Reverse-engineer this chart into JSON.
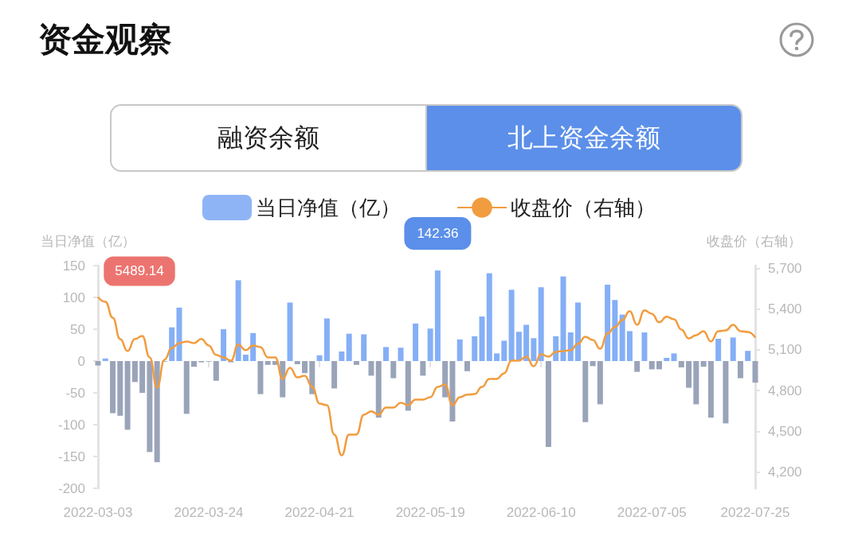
{
  "chart_data": {
    "type": "bar",
    "title": "资金观察",
    "annotations": [
      "融资余额",
      "北上资金余额"
    ],
    "ylabel": "当日净值（亿）",
    "y2label": "收盘价（右轴）",
    "legend": "top",
    "grid": false,
    "marker": "none",
    "categories": [
      "2022-03-03",
      null,
      null,
      null,
      null,
      null,
      null,
      null,
      null,
      null,
      null,
      null,
      null,
      null,
      null,
      "2022-03-24",
      null,
      null,
      null,
      null,
      null,
      null,
      null,
      null,
      null,
      null,
      null,
      null,
      null,
      null,
      "2022-04-21",
      null,
      null,
      null,
      null,
      null,
      null,
      null,
      null,
      null,
      null,
      null,
      null,
      null,
      null,
      "2022-05-19",
      null,
      null,
      null,
      null,
      null,
      null,
      null,
      null,
      null,
      null,
      null,
      null,
      null,
      null,
      "2022-06-10",
      null,
      null,
      null,
      null,
      null,
      null,
      null,
      null,
      null,
      null,
      null,
      null,
      null,
      null,
      "2022-07-05",
      null,
      null,
      null,
      null,
      null,
      null,
      null,
      null,
      null,
      null,
      null,
      null,
      null,
      "2022-07-25"
    ],
    "ylim": [
      -200,
      150
    ],
    "yticks": [
      -200,
      -150,
      -100,
      -50,
      0,
      50,
      100,
      150
    ],
    "y2lim": [
      4080,
      5720
    ],
    "y2ticks": [
      {
        "value": 4200,
        "label": "4,200"
      },
      {
        "value": 4500,
        "label": "4,500"
      },
      {
        "value": 4800,
        "label": "4,800"
      },
      {
        "value": 5100,
        "label": "5,100"
      },
      {
        "value": 5400,
        "label": "5,400"
      },
      {
        "value": 5700,
        "label": "5,700"
      }
    ],
    "series": [
      {
        "name": "当日净值（亿）",
        "type": "bar",
        "color": "#8fb4f5",
        "values": [
          -7,
          4,
          -82,
          -86,
          -108,
          -33,
          -50,
          -143,
          -159,
          -1,
          53,
          84,
          -83,
          -9,
          -2,
          -1,
          -31,
          50,
          -2,
          127,
          10,
          44,
          -52,
          -6,
          -6,
          -57,
          92,
          -5,
          -19,
          -52,
          9,
          67,
          -43,
          15,
          43,
          -6,
          42,
          -23,
          -89,
          22,
          -27,
          21,
          -78,
          59,
          -23,
          51,
          142.36,
          -57,
          -95,
          34,
          -16,
          39,
          70,
          138,
          12,
          32,
          112,
          46,
          57,
          36,
          116,
          -135,
          39,
          133,
          45,
          92,
          -96,
          -8,
          -68,
          120,
          96,
          73,
          47,
          -17,
          45,
          -13,
          -13,
          5,
          12,
          -10,
          -42,
          -68,
          -9,
          -89,
          35,
          -98,
          37,
          -27,
          16,
          -34
        ],
        "colors": [
          "#9aa4b9",
          "#85aff6",
          "#9aa4b9",
          "#9aa4b9",
          "#9aa4b9",
          "#9aa4b9",
          "#9aa4b9",
          "#9aa4b9",
          "#9aa4b9",
          "#9aa4b9",
          "#85aff6",
          "#85aff6",
          "#9aa4b9",
          "#9aa4b9",
          "#9aa4b9",
          "#9aa4b9",
          "#9aa4b9",
          "#85aff6",
          "#9aa4b9",
          "#85aff6",
          "#85aff6",
          "#85aff6",
          "#9aa4b9",
          "#9aa4b9",
          "#9aa4b9",
          "#9aa4b9",
          "#85aff6",
          "#9aa4b9",
          "#9aa4b9",
          "#9aa4b9",
          "#85aff6",
          "#85aff6",
          "#9aa4b9",
          "#85aff6",
          "#85aff6",
          "#9aa4b9",
          "#85aff6",
          "#9aa4b9",
          "#9aa4b9",
          "#85aff6",
          "#9aa4b9",
          "#85aff6",
          "#9aa4b9",
          "#85aff6",
          "#9aa4b9",
          "#85aff6",
          "#85aff6",
          "#9aa4b9",
          "#9aa4b9",
          "#85aff6",
          "#9aa4b9",
          "#85aff6",
          "#85aff6",
          "#85aff6",
          "#85aff6",
          "#85aff6",
          "#85aff6",
          "#85aff6",
          "#85aff6",
          "#85aff6",
          "#85aff6",
          "#9aa4b9",
          "#85aff6",
          "#85aff6",
          "#85aff6",
          "#85aff6",
          "#9aa4b9",
          "#9aa4b9",
          "#9aa4b9",
          "#85aff6",
          "#85aff6",
          "#85aff6",
          "#85aff6",
          "#9aa4b9",
          "#85aff6",
          "#9aa4b9",
          "#9aa4b9",
          "#85aff6",
          "#85aff6",
          "#9aa4b9",
          "#9aa4b9",
          "#9aa4b9",
          "#9aa4b9",
          "#9aa4b9",
          "#85aff6",
          "#9aa4b9",
          "#85aff6",
          "#9aa4b9",
          "#85aff6",
          "#9aa4b9"
        ],
        "value_labels": [
          null,
          null,
          null,
          null,
          null,
          null,
          null,
          null,
          null,
          null,
          null,
          null,
          null,
          null,
          null,
          null,
          null,
          null,
          null,
          null,
          null,
          null,
          null,
          null,
          null,
          null,
          null,
          null,
          null,
          null,
          null,
          null,
          null,
          null,
          null,
          null,
          null,
          null,
          null,
          null,
          null,
          null,
          null,
          null,
          null,
          null,
          "142.36",
          null,
          null,
          null,
          null,
          null,
          null,
          null,
          null,
          null,
          null,
          null,
          null,
          null,
          null,
          null,
          null,
          null,
          null,
          null,
          null,
          null,
          null,
          null,
          null,
          null,
          null,
          null,
          null,
          null,
          null,
          null,
          null,
          null,
          null,
          null,
          null,
          null,
          null,
          null,
          null,
          null,
          null,
          null
        ]
      },
      {
        "name": "收盘价（右轴）",
        "type": "line",
        "axis": "y2",
        "color": "#f19c3f",
        "values": [
          5489.14,
          5454,
          5337,
          5179,
          5091,
          5179,
          5202,
          5044,
          4821,
          5026,
          5114,
          5149,
          5161,
          5149,
          5179,
          5132,
          5062,
          5044,
          5020,
          5138,
          5097,
          5132,
          5120,
          5044,
          5044,
          4886,
          4968,
          4897,
          4909,
          4827,
          4704,
          4692,
          4476,
          4323,
          4476,
          4476,
          4622,
          4646,
          4622,
          4675,
          4675,
          4710,
          4692,
          4733,
          4733,
          4751,
          4827,
          4845,
          4692,
          4751,
          4769,
          4774,
          4827,
          4886,
          4886,
          4927,
          5020,
          5020,
          5050,
          4979,
          5067,
          5050,
          5085,
          5091,
          5097,
          5144,
          5196,
          5173,
          5108,
          5220,
          5267,
          5319,
          5384,
          5284,
          5390,
          5366,
          5302,
          5343,
          5325,
          5249,
          5184,
          5208,
          5237,
          5161,
          5237,
          5243,
          5284,
          5237,
          5231,
          5190
        ],
        "value_labels": [
          "5489.14",
          null,
          null,
          null,
          null,
          null,
          null,
          null,
          null,
          null,
          null,
          null,
          null,
          null,
          null,
          null,
          null,
          null,
          null,
          null,
          null,
          null,
          null,
          null,
          null,
          null,
          null,
          null,
          null,
          null,
          null,
          null,
          null,
          null,
          null,
          null,
          null,
          null,
          null,
          null,
          null,
          null,
          null,
          null,
          null,
          null,
          null,
          null,
          null,
          null,
          null,
          null,
          null,
          null,
          null,
          null,
          null,
          null,
          null,
          null,
          null,
          null,
          null,
          null,
          null,
          null,
          null,
          null,
          null,
          null,
          null,
          null,
          null,
          null,
          null,
          null,
          null,
          null,
          null,
          null,
          null,
          null,
          null,
          null,
          null,
          null,
          null,
          null,
          null,
          null
        ]
      }
    ]
  }
}
